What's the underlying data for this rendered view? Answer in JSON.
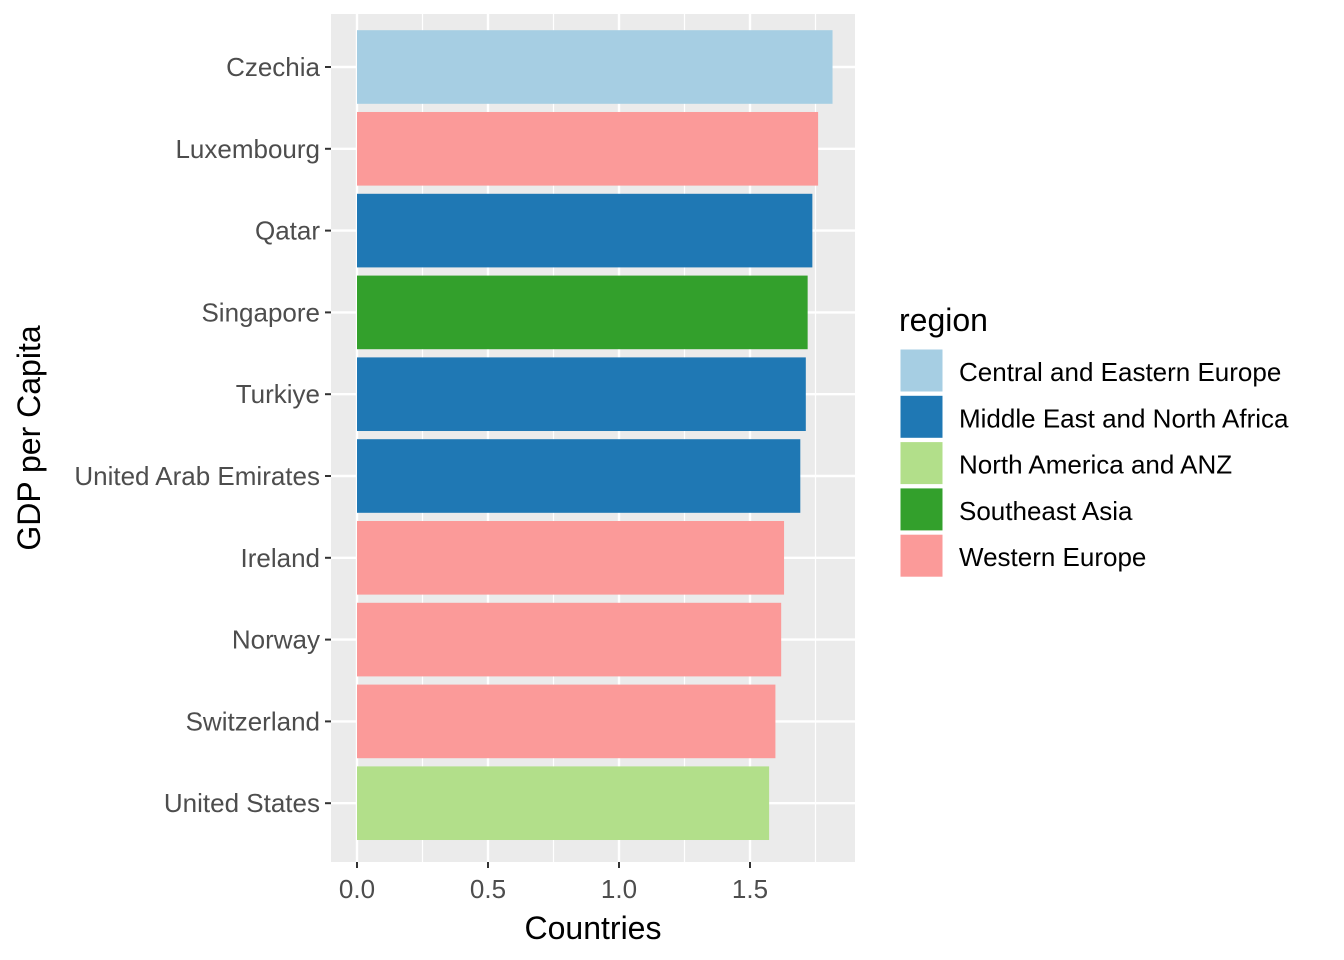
{
  "chart_data": {
    "type": "bar",
    "orientation": "horizontal",
    "xlabel": "Countries",
    "ylabel": "GDP per Capita",
    "xlim": [
      -0.09,
      1.9
    ],
    "xticks": [
      0.0,
      0.5,
      1.0,
      1.5
    ],
    "xtick_labels": [
      "0.0",
      "0.5",
      "1.0",
      "1.5"
    ],
    "grid": true,
    "legend_position": "right",
    "legend_title": "region",
    "legend": [
      {
        "name": "Central and Eastern Europe",
        "color": "#a6cee3"
      },
      {
        "name": "Middle East and North Africa",
        "color": "#1f78b4"
      },
      {
        "name": "North America and ANZ",
        "color": "#b2df8a"
      },
      {
        "name": "Southeast Asia",
        "color": "#33a02c"
      },
      {
        "name": "Western Europe",
        "color": "#fb9a99"
      }
    ],
    "categories": [
      "Czechia",
      "Luxembourg",
      "Qatar",
      "Singapore",
      "Turkiye",
      "United Arab Emirates",
      "Ireland",
      "Norway",
      "Switzerland",
      "United States"
    ],
    "values": [
      1.815,
      1.76,
      1.738,
      1.72,
      1.713,
      1.692,
      1.63,
      1.619,
      1.597,
      1.573
    ],
    "regions": [
      "Central and Eastern Europe",
      "Western Europe",
      "Middle East and North Africa",
      "Southeast Asia",
      "Middle East and North Africa",
      "Middle East and North Africa",
      "Western Europe",
      "Western Europe",
      "Western Europe",
      "North America and ANZ"
    ]
  }
}
